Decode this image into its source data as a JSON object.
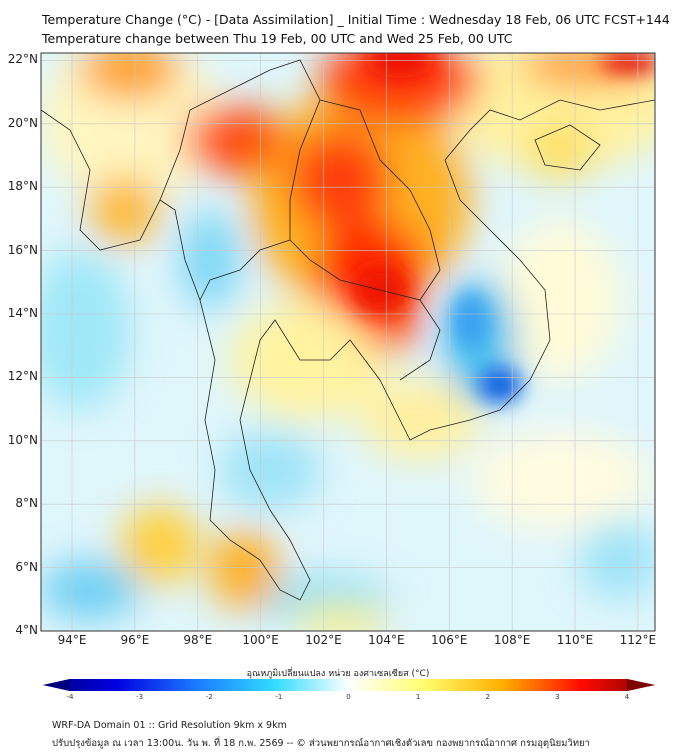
{
  "title": {
    "line1": "Temperature Change (°C) - [Data Assimilation] _ Initial Time : Wednesday 18 Feb, 06 UTC FCST+144",
    "line2": "Temperature change between Thu 19 Feb, 00 UTC and Wed 25 Feb, 00 UTC"
  },
  "map": {
    "lat_labels": [
      "22°N",
      "20°N",
      "18°N",
      "16°N",
      "14°N",
      "12°N",
      "10°N",
      "8°N",
      "6°N",
      "4°N"
    ],
    "lon_labels": [
      "94°E",
      "96°E",
      "98°E",
      "100°E",
      "102°E",
      "104°E",
      "106°E",
      "108°E",
      "110°E",
      "112°E"
    ]
  },
  "colorbar": {
    "label": "อุณหภูมิเปลี่ยนแปลง หน่วย องศาเซลเซียส (°C)",
    "ticks": [
      "-4",
      "-3",
      "-2",
      "-1",
      "0",
      "1",
      "2",
      "3",
      "4"
    ],
    "range": [
      -4,
      4
    ],
    "colors": [
      "#00007f",
      "#0000ff",
      "#0080ff",
      "#33ddff",
      "#ffffff",
      "#ffff66",
      "#ffaa00",
      "#ff0000",
      "#7f0000"
    ]
  },
  "footer": {
    "line1": "WRF-DA Domain 01 :: Grid Resolution 9km x 9km",
    "line2": "ปรับปรุงข้อมูล ณ เวลา 13:00น. วัน พ. ที่ 18 ก.พ. 2569 -- © ส่วนพยากรณ์อากาศเชิงตัวเลข กองพยากรณ์อากาศ กรมอุตุนิยมวิทยา"
  }
}
